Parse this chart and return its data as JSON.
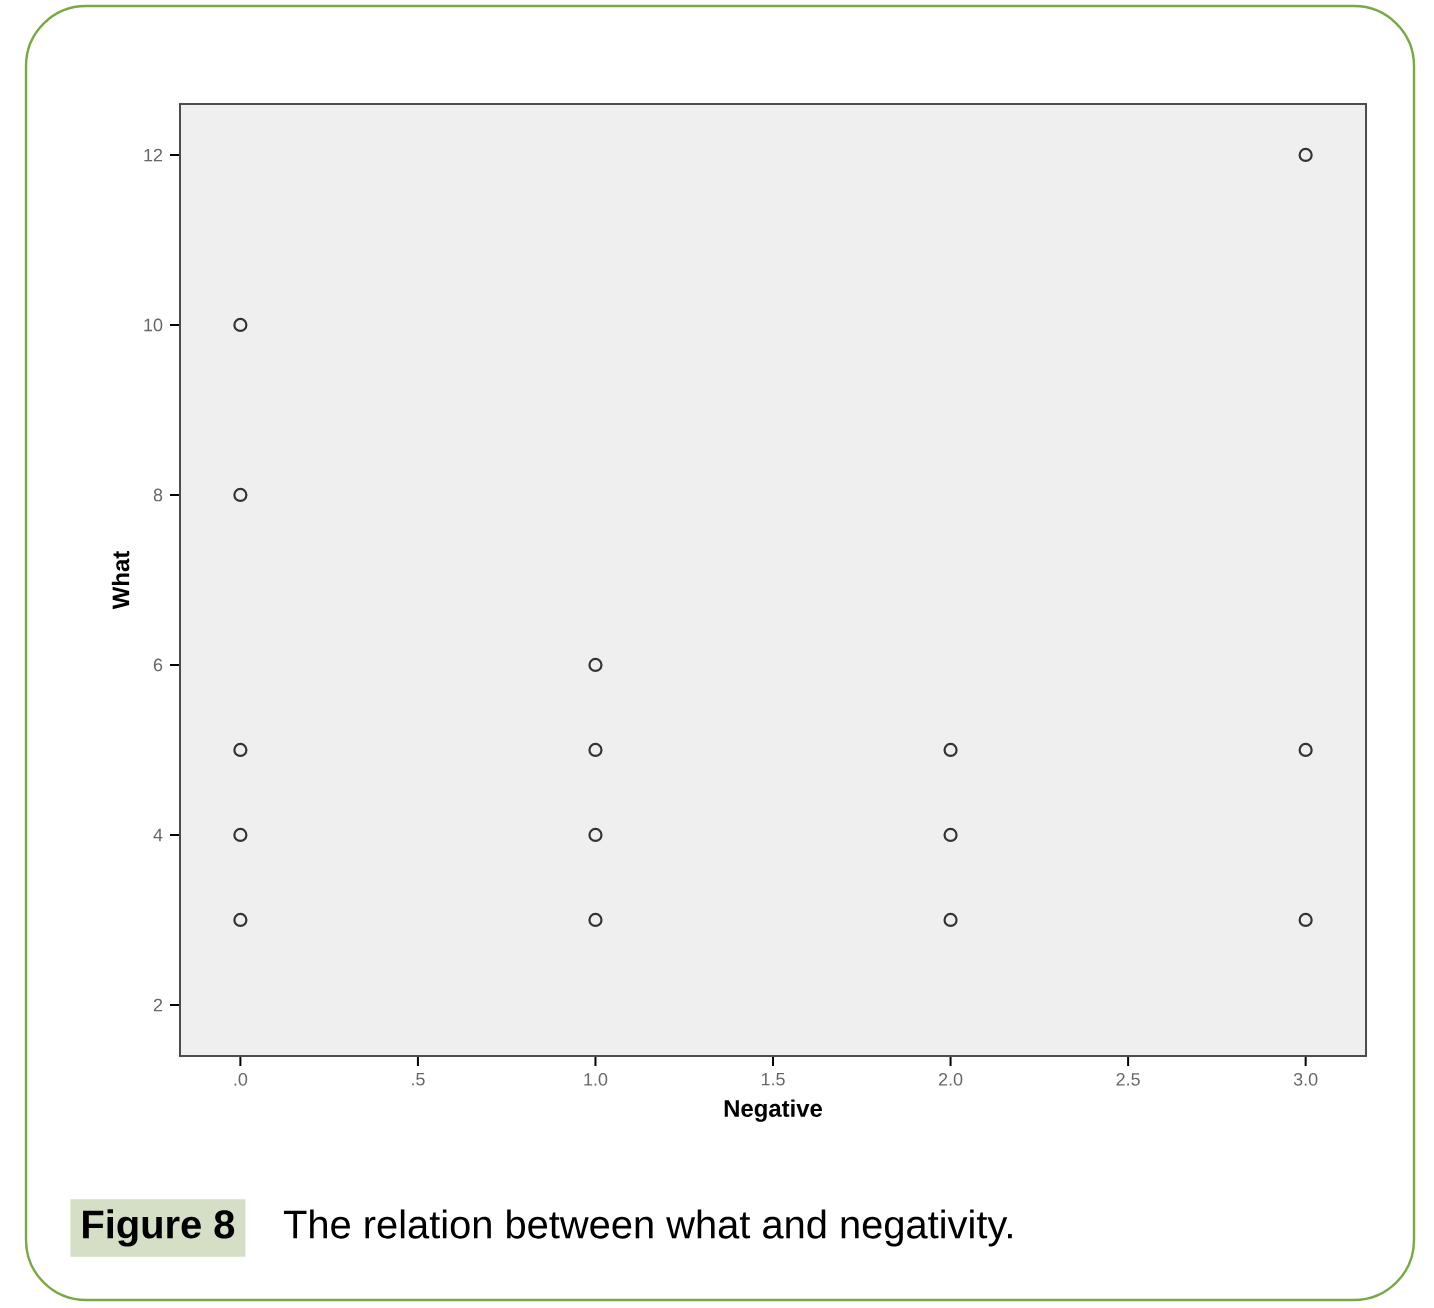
{
  "chart_data": {
    "type": "scatter",
    "xlabel": "Negative",
    "ylabel": "What",
    "annotations": [
      "Figure 8",
      "The relation between what and negativity."
    ],
    "series": [
      {
        "color": "#333333",
        "x": [
          0,
          0,
          0,
          0,
          0,
          1,
          1,
          1,
          1,
          2,
          2,
          2,
          3,
          3,
          3
        ],
        "values": [
          10,
          8,
          5,
          4,
          3,
          6,
          5,
          4,
          3,
          5,
          4,
          3,
          12,
          5,
          3
        ]
      }
    ],
    "xlim": [
      -0.17,
      3.17
    ],
    "ylim": [
      1.4,
      12.6
    ],
    "xticks": [
      {
        "value": 0,
        "label": ".0"
      },
      {
        "value": 0.5,
        "label": ".5"
      },
      {
        "value": 1,
        "label": "1.0"
      },
      {
        "value": 1.5,
        "label": "1.5"
      },
      {
        "value": 2,
        "label": "2.0"
      },
      {
        "value": 2.5,
        "label": "2.5"
      },
      {
        "value": 3,
        "label": "3.0"
      }
    ],
    "yticks": [
      2,
      4,
      6,
      8,
      10,
      12
    ],
    "marker": "circle",
    "grid": false
  }
}
